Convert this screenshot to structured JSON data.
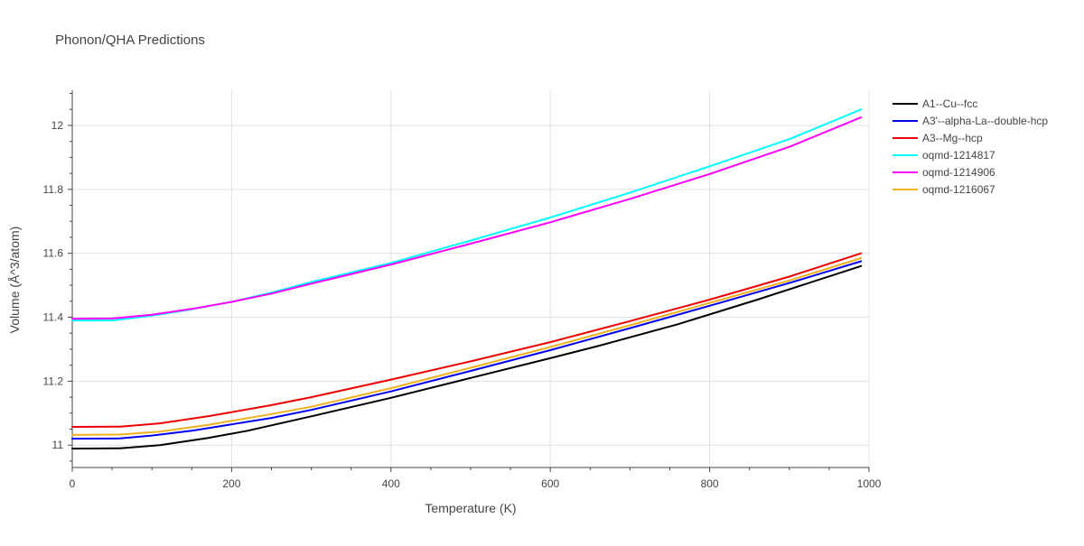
{
  "chart_data": {
    "type": "line",
    "title": "Phonon/QHA Predictions",
    "xlabel": "Temperature (K)",
    "ylabel": "Volume (Å^3/atom)",
    "xlim": [
      0,
      1000
    ],
    "ylim": [
      10.93,
      12.11
    ],
    "x_ticks": [
      0,
      200,
      400,
      600,
      800,
      1000
    ],
    "y_ticks": [
      11,
      11.2,
      11.4,
      11.6,
      11.8,
      12
    ],
    "x_tick_labels": [
      "0",
      "200",
      "400",
      "600",
      "800",
      "1000"
    ],
    "y_tick_labels": [
      "11",
      "11.2",
      "11.4",
      "11.6",
      "11.8",
      "12"
    ],
    "grid": true,
    "legend_position": "top-right",
    "series": [
      {
        "name": "A1--Cu--fcc",
        "color": "#000000",
        "x": [
          0,
          60,
          110,
          170,
          220,
          300,
          400,
          500,
          600,
          660,
          760,
          860,
          990
        ],
        "y": [
          10.989,
          10.99,
          11.0,
          11.022,
          11.045,
          11.09,
          11.148,
          11.21,
          11.272,
          11.31,
          11.378,
          11.455,
          11.56
        ]
      },
      {
        "name": "A3'--alpha-La--double-hcp",
        "color": "#0000ee",
        "x": [
          0,
          60,
          100,
          150,
          200,
          250,
          300,
          400,
          500,
          600,
          700,
          800,
          900,
          990
        ],
        "y": [
          11.02,
          11.021,
          11.03,
          11.045,
          11.065,
          11.085,
          11.11,
          11.168,
          11.232,
          11.297,
          11.366,
          11.436,
          11.507,
          11.575
        ]
      },
      {
        "name": "A3--Mg--hcp",
        "color": "#ee0000",
        "x": [
          0,
          60,
          110,
          170,
          200,
          250,
          300,
          400,
          500,
          600,
          700,
          800,
          900,
          990
        ],
        "y": [
          11.057,
          11.058,
          11.068,
          11.09,
          11.103,
          11.125,
          11.15,
          11.205,
          11.262,
          11.322,
          11.388,
          11.455,
          11.527,
          11.6
        ]
      },
      {
        "name": "oqmd-1214817",
        "color": "#00ffff",
        "x": [
          0,
          50,
          100,
          150,
          200,
          250,
          300,
          400,
          500,
          600,
          700,
          800,
          900,
          990
        ],
        "y": [
          11.39,
          11.39,
          11.405,
          11.425,
          11.448,
          11.477,
          11.51,
          11.57,
          11.64,
          11.712,
          11.79,
          11.872,
          11.957,
          12.05
        ]
      },
      {
        "name": "oqmd-1214906",
        "color": "#ff00ff",
        "x": [
          0,
          50,
          100,
          150,
          200,
          250,
          300,
          400,
          500,
          600,
          700,
          800,
          900,
          990
        ],
        "y": [
          11.395,
          11.396,
          11.408,
          11.426,
          11.448,
          11.474,
          11.505,
          11.565,
          11.63,
          11.697,
          11.77,
          11.848,
          11.933,
          12.025
        ]
      },
      {
        "name": "oqmd-1216067",
        "color": "#f0b020",
        "x": [
          0,
          60,
          110,
          170,
          200,
          250,
          300,
          400,
          500,
          600,
          700,
          800,
          900,
          990
        ],
        "y": [
          11.032,
          11.033,
          11.042,
          11.063,
          11.076,
          11.097,
          11.12,
          11.178,
          11.242,
          11.307,
          11.375,
          11.445,
          11.515,
          11.585
        ]
      }
    ]
  }
}
